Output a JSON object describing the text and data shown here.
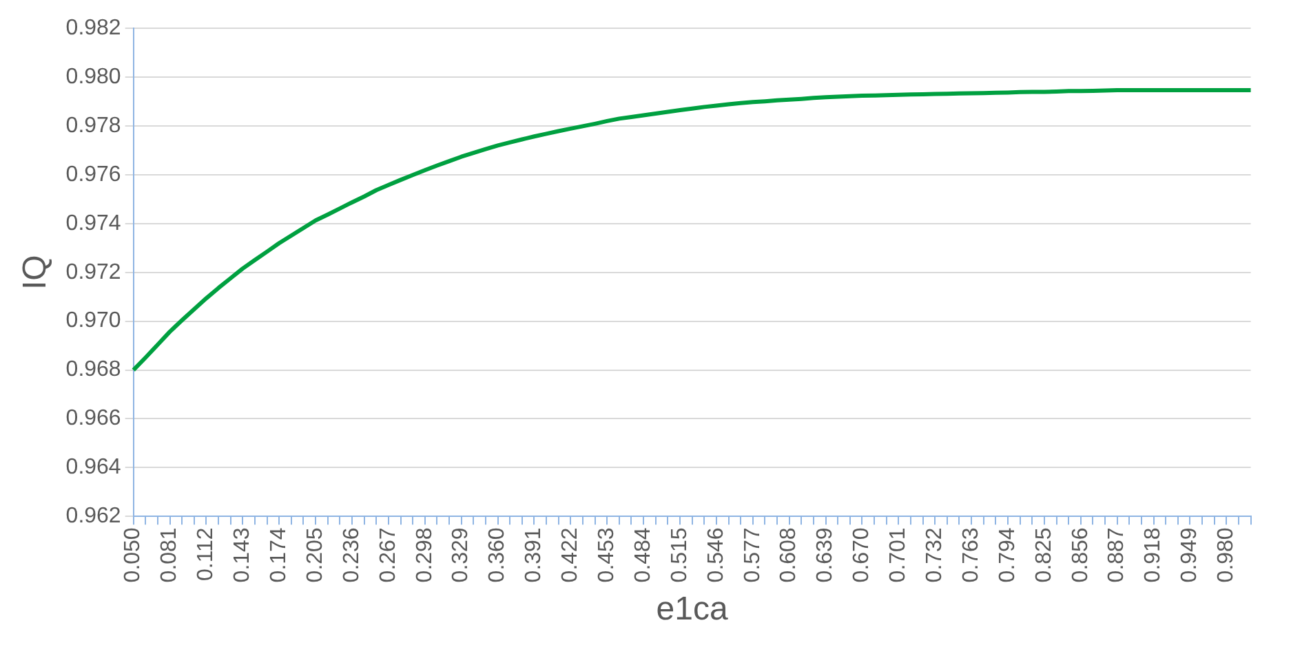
{
  "chart_data": {
    "type": "line",
    "xlabel": "e1ca",
    "ylabel": "IQ",
    "categories": [
      "0.050",
      null,
      null,
      "0.081",
      null,
      null,
      "0.112",
      null,
      null,
      "0.143",
      null,
      null,
      "0.174",
      null,
      null,
      "0.205",
      null,
      null,
      "0.236",
      null,
      null,
      "0.267",
      null,
      null,
      "0.298",
      null,
      null,
      "0.329",
      null,
      null,
      "0.360",
      null,
      null,
      "0.391",
      null,
      null,
      "0.422",
      null,
      null,
      "0.453",
      null,
      null,
      "0.484",
      null,
      null,
      "0.515",
      null,
      null,
      "0.546",
      null,
      null,
      "0.577",
      null,
      null,
      "0.608",
      null,
      null,
      "0.639",
      null,
      null,
      "0.670",
      null,
      null,
      "0.701",
      null,
      null,
      "0.732",
      null,
      null,
      "0.763",
      null,
      null,
      "0.794",
      null,
      null,
      "0.825",
      null,
      null,
      "0.856",
      null,
      null,
      "0.887",
      null,
      null,
      "0.918",
      null,
      null,
      "0.949",
      null,
      null,
      "0.980",
      null,
      null
    ],
    "series": [
      {
        "color": "#00a040",
        "values": [
          0.968,
          0.96851,
          0.96904,
          0.96957,
          0.97004,
          0.97049,
          0.97094,
          0.97136,
          0.97176,
          0.97216,
          0.97251,
          0.97285,
          0.9732,
          0.97351,
          0.97382,
          0.97413,
          0.97437,
          0.97462,
          0.97487,
          0.97511,
          0.97537,
          0.97558,
          0.97579,
          0.97599,
          0.97619,
          0.97638,
          0.97656,
          0.97674,
          0.9769,
          0.97705,
          0.9772,
          0.97733,
          0.97745,
          0.97757,
          0.97768,
          0.97779,
          0.97789,
          0.97799,
          0.97809,
          0.9782,
          0.9783,
          0.97837,
          0.97844,
          0.97851,
          0.97858,
          0.97865,
          0.97871,
          0.97878,
          0.97883,
          0.97889,
          0.97894,
          0.97898,
          0.97901,
          0.97905,
          0.97908,
          0.97911,
          0.97915,
          0.97918,
          0.9792,
          0.97922,
          0.97924,
          0.97925,
          0.97926,
          0.97928,
          0.97929,
          0.9793,
          0.97931,
          0.97932,
          0.97933,
          0.97934,
          0.97935,
          0.97936,
          0.97937,
          0.97939,
          0.9794,
          0.9794,
          0.97941,
          0.97943,
          0.97943,
          0.97944,
          0.97945,
          0.97947,
          0.97947,
          0.97947,
          0.97947,
          0.97947,
          0.97947,
          0.97947,
          0.97947,
          0.97947,
          0.97947,
          0.97947,
          0.97947
        ]
      }
    ],
    "ylim": [
      0.962,
      0.982
    ],
    "yticks": [
      0.962,
      0.964,
      0.966,
      0.968,
      {
        "value": 0.97,
        "label": "0.970"
      },
      0.972,
      0.974,
      0.976,
      0.978,
      {
        "value": 0.98,
        "label": "0.980"
      },
      0.982
    ],
    "grid": "y",
    "legend": false,
    "marker": "none",
    "line_style": "solid"
  }
}
